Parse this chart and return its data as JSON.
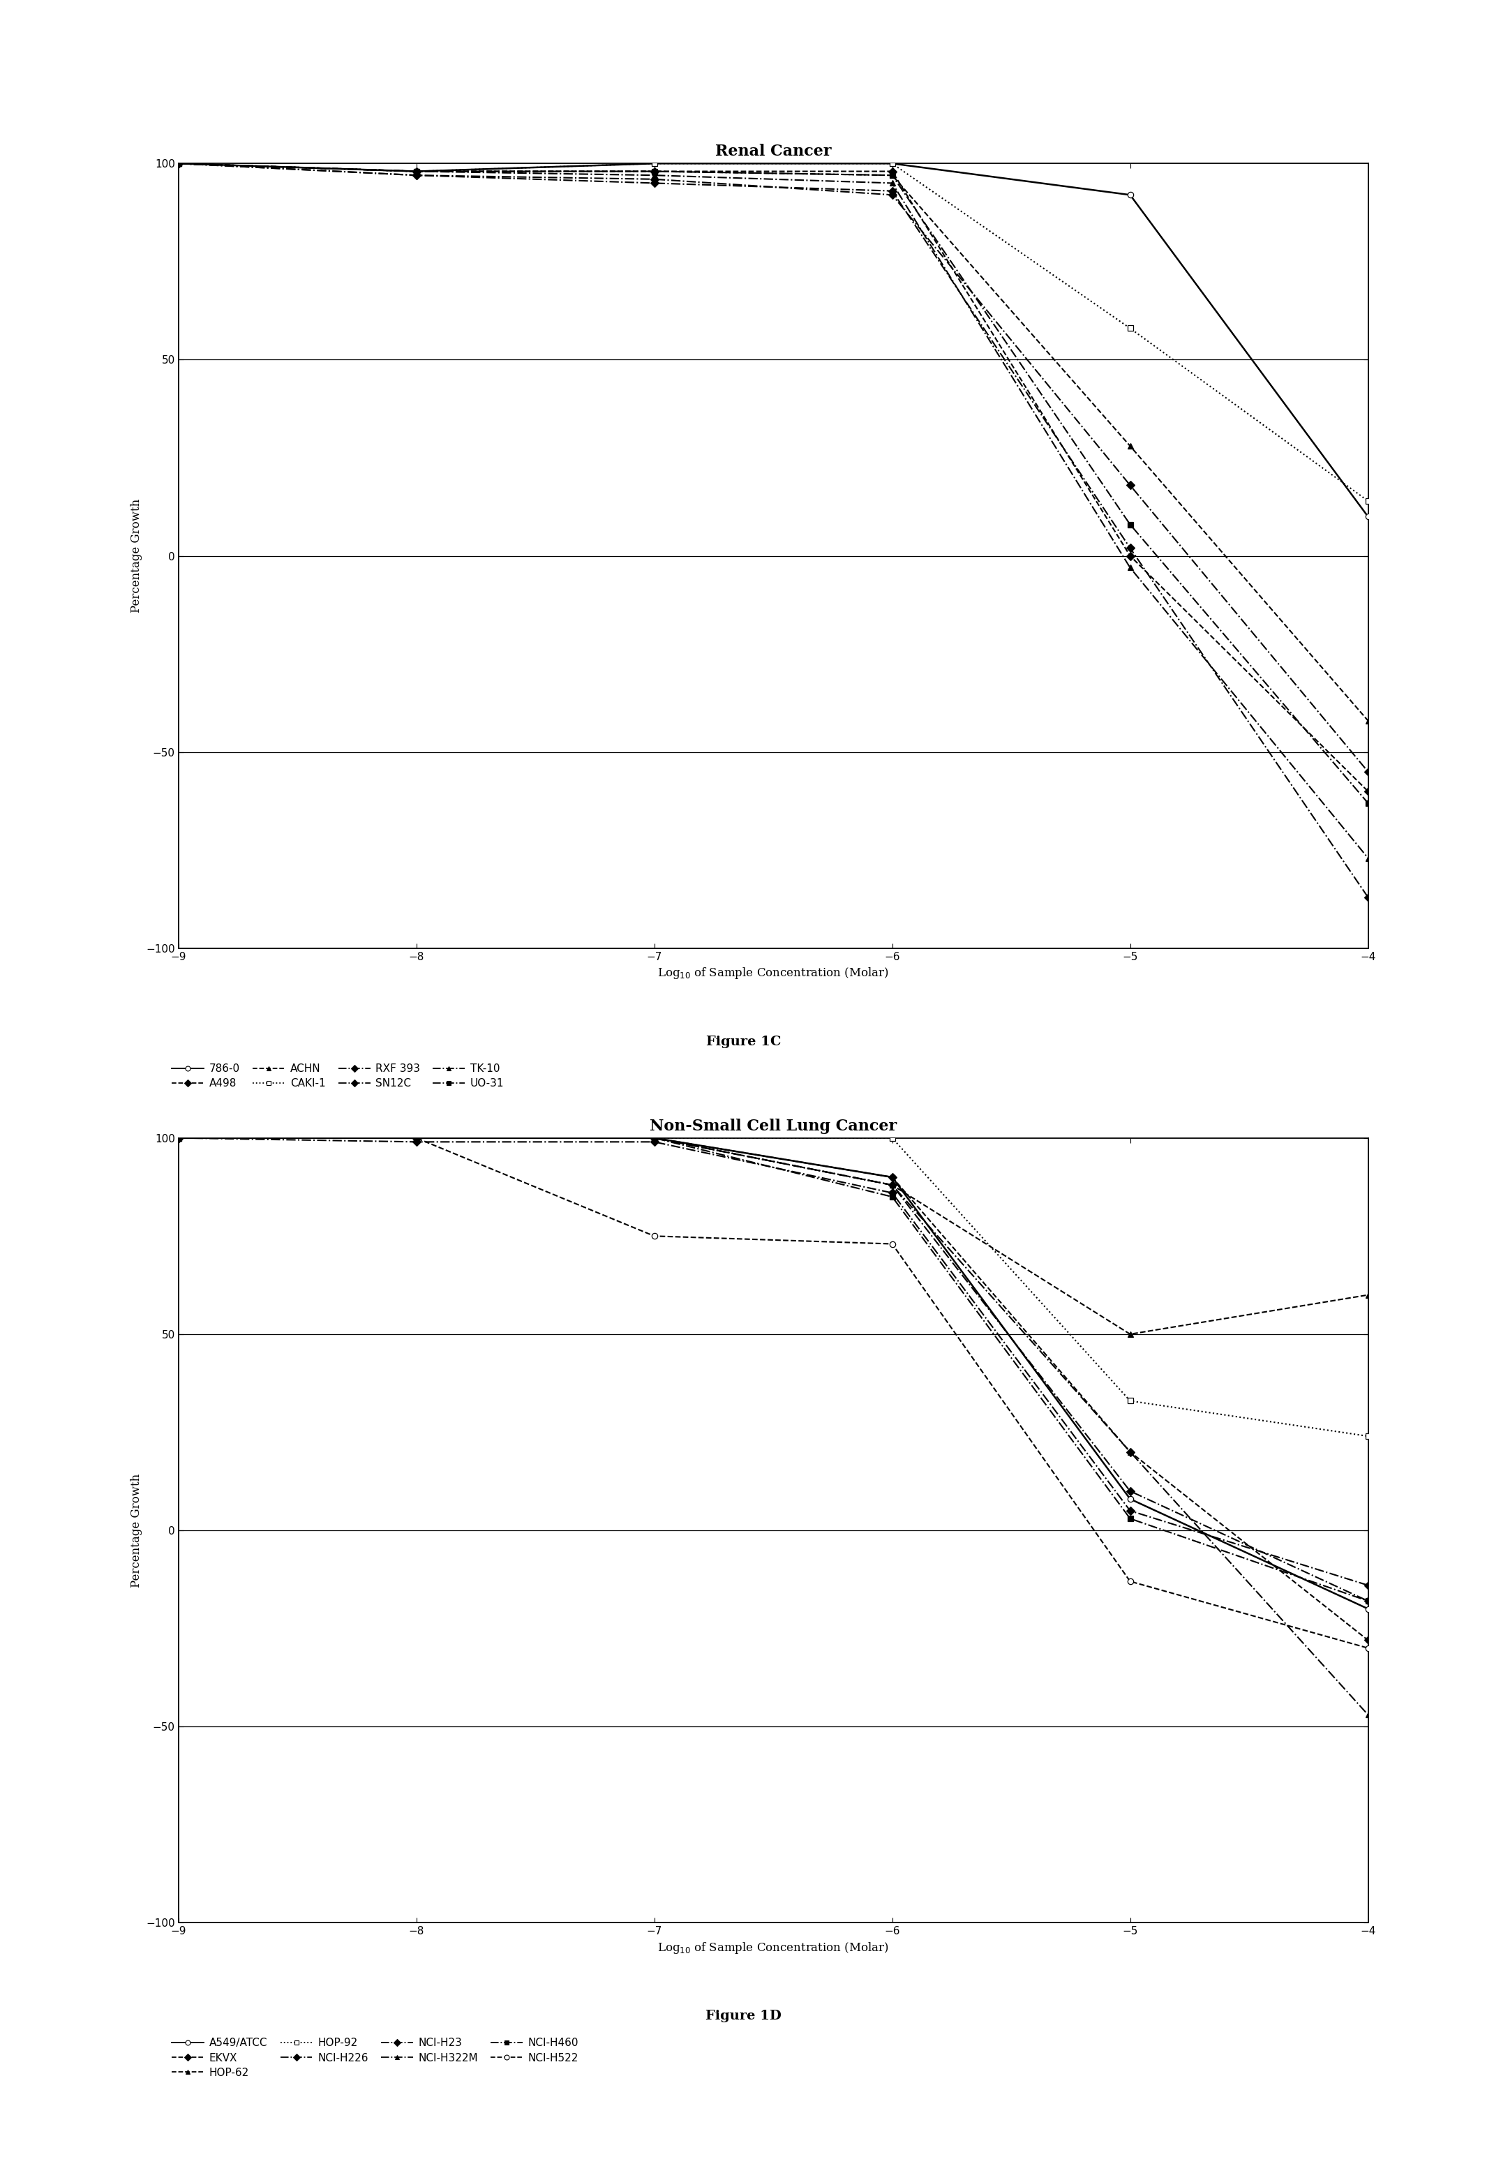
{
  "fig1c": {
    "title": "Renal Cancer",
    "xlabel": "Log$_{10}$ of Sample Concentration (Molar)",
    "ylabel": "Percentage Growth",
    "xlim": [
      -9,
      -4
    ],
    "ylim": [
      -100,
      100
    ],
    "yticks": [
      -100,
      -50,
      0,
      50,
      100
    ],
    "xtick_vals": [
      -9,
      -8,
      -7,
      -6,
      -5,
      -4
    ],
    "figure_label": "Figure 1C",
    "series": [
      {
        "name": "786-0",
        "x": [
          -9,
          -8,
          -7,
          -6,
          -5,
          -4
        ],
        "y": [
          100,
          98,
          100,
          100,
          92,
          10
        ],
        "linestyle": "-",
        "marker": "o",
        "mfc": "white",
        "lw": 1.8
      },
      {
        "name": "RXF 393",
        "x": [
          -9,
          -8,
          -7,
          -6,
          -5,
          -4
        ],
        "y": [
          100,
          97,
          95,
          93,
          2,
          -87
        ],
        "linestyle": "-.",
        "marker": "D",
        "mfc": "black",
        "lw": 1.5
      },
      {
        "name": "A498",
        "x": [
          -9,
          -8,
          -7,
          -6,
          -5,
          -4
        ],
        "y": [
          100,
          98,
          98,
          98,
          0,
          -60
        ],
        "linestyle": "--",
        "marker": "D",
        "mfc": "black",
        "lw": 1.5
      },
      {
        "name": "SN12C",
        "x": [
          -9,
          -8,
          -7,
          -6,
          -5,
          -4
        ],
        "y": [
          100,
          97,
          96,
          92,
          18,
          -55
        ],
        "linestyle": "-.",
        "marker": "D",
        "mfc": "black",
        "lw": 1.5
      },
      {
        "name": "ACHN",
        "x": [
          -9,
          -8,
          -7,
          -6,
          -5,
          -4
        ],
        "y": [
          100,
          98,
          98,
          97,
          28,
          -42
        ],
        "linestyle": "--",
        "marker": "^",
        "mfc": "black",
        "lw": 1.5
      },
      {
        "name": "TK-10",
        "x": [
          -9,
          -8,
          -7,
          -6,
          -5,
          -4
        ],
        "y": [
          100,
          98,
          97,
          95,
          -3,
          -77
        ],
        "linestyle": "-.",
        "marker": "^",
        "mfc": "black",
        "lw": 1.5
      },
      {
        "name": "CAKI-1",
        "x": [
          -9,
          -8,
          -7,
          -6,
          -5,
          -4
        ],
        "y": [
          100,
          98,
          100,
          100,
          58,
          14
        ],
        "linestyle": ":",
        "marker": "s",
        "mfc": "white",
        "lw": 1.5
      },
      {
        "name": "UO-31",
        "x": [
          -9,
          -8,
          -7,
          -6,
          -5,
          -4
        ],
        "y": [
          100,
          98,
          98,
          97,
          8,
          -63
        ],
        "linestyle": "-.",
        "marker": "s",
        "mfc": "black",
        "lw": 1.5
      }
    ],
    "legend_row1": [
      {
        "name": "786-0",
        "linestyle": "-",
        "marker": "o",
        "mfc": "white"
      },
      {
        "name": "A498",
        "linestyle": "--",
        "marker": "D",
        "mfc": "black"
      },
      {
        "name": "ACHN",
        "linestyle": "--",
        "marker": "^",
        "mfc": "black"
      },
      {
        "name": "CAKI-1",
        "linestyle": ":",
        "marker": "s",
        "mfc": "white"
      }
    ],
    "legend_row2": [
      {
        "name": "RXF 393",
        "linestyle": "-.",
        "marker": "D",
        "mfc": "black"
      },
      {
        "name": "SN12C",
        "linestyle": "-.",
        "marker": "D",
        "mfc": "black"
      },
      {
        "name": "TK-10",
        "linestyle": "-.",
        "marker": "^",
        "mfc": "black"
      },
      {
        "name": "UO-31",
        "linestyle": "-.",
        "marker": "s",
        "mfc": "black"
      }
    ]
  },
  "fig1d": {
    "title": "Non-Small Cell Lung Cancer",
    "xlabel": "Log$_{10}$ of Sample Concentration (Molar)",
    "ylabel": "Percentage Growth",
    "xlim": [
      -9,
      -4
    ],
    "ylim": [
      -100,
      100
    ],
    "yticks": [
      -100,
      -50,
      0,
      50,
      100
    ],
    "xtick_vals": [
      -9,
      -8,
      -7,
      -6,
      -5,
      -4
    ],
    "figure_label": "Figure 1D",
    "series": [
      {
        "name": "A549/ATCC",
        "x": [
          -9,
          -8,
          -7,
          -6,
          -5,
          -4
        ],
        "y": [
          100,
          100,
          100,
          90,
          8,
          -20
        ],
        "linestyle": "-",
        "marker": "o",
        "mfc": "white",
        "lw": 1.8
      },
      {
        "name": "NCI-H226",
        "x": [
          -9,
          -8,
          -7,
          -6,
          -5,
          -4
        ],
        "y": [
          100,
          99,
          99,
          86,
          5,
          -14
        ],
        "linestyle": "-.",
        "marker": "D",
        "mfc": "black",
        "lw": 1.5
      },
      {
        "name": "NCI-H522",
        "x": [
          -9,
          -8,
          -7,
          -6,
          -5,
          -4
        ],
        "y": [
          100,
          100,
          75,
          73,
          -13,
          -30
        ],
        "linestyle": "--",
        "marker": "o",
        "mfc": "white",
        "lw": 1.5
      },
      {
        "name": "EKVX",
        "x": [
          -9,
          -8,
          -7,
          -6,
          -5,
          -4
        ],
        "y": [
          100,
          100,
          100,
          90,
          20,
          -28
        ],
        "linestyle": "--",
        "marker": "D",
        "mfc": "black",
        "lw": 1.5
      },
      {
        "name": "NCI-H23",
        "x": [
          -9,
          -8,
          -7,
          -6,
          -5,
          -4
        ],
        "y": [
          100,
          100,
          100,
          88,
          10,
          -18
        ],
        "linestyle": "-.",
        "marker": "D",
        "mfc": "black",
        "lw": 1.5
      },
      {
        "name": "HOP-62",
        "x": [
          -9,
          -8,
          -7,
          -6,
          -5,
          -4
        ],
        "y": [
          100,
          100,
          100,
          88,
          50,
          60
        ],
        "linestyle": "--",
        "marker": "^",
        "mfc": "black",
        "lw": 1.5
      },
      {
        "name": "NCI-H322M",
        "x": [
          -9,
          -8,
          -7,
          -6,
          -5,
          -4
        ],
        "y": [
          100,
          100,
          100,
          88,
          20,
          -47
        ],
        "linestyle": "-.",
        "marker": "^",
        "mfc": "black",
        "lw": 1.5
      },
      {
        "name": "HOP-92",
        "x": [
          -9,
          -8,
          -7,
          -6,
          -5,
          -4
        ],
        "y": [
          100,
          100,
          100,
          100,
          33,
          24
        ],
        "linestyle": ":",
        "marker": "s",
        "mfc": "white",
        "lw": 1.5
      },
      {
        "name": "NCI-H460",
        "x": [
          -9,
          -8,
          -7,
          -6,
          -5,
          -4
        ],
        "y": [
          100,
          100,
          100,
          85,
          3,
          -18
        ],
        "linestyle": "-.",
        "marker": "s",
        "mfc": "black",
        "lw": 1.5
      }
    ],
    "legend_row1": [
      {
        "name": "A549/ATCC",
        "linestyle": "-",
        "marker": "o",
        "mfc": "white"
      },
      {
        "name": "EKVX",
        "linestyle": "--",
        "marker": "D",
        "mfc": "black"
      },
      {
        "name": "HOP-62",
        "linestyle": "--",
        "marker": "^",
        "mfc": "black"
      },
      {
        "name": "HOP-92",
        "linestyle": ":",
        "marker": "s",
        "mfc": "white"
      }
    ],
    "legend_row2": [
      {
        "name": "NCI-H226",
        "linestyle": "-.",
        "marker": "D",
        "mfc": "black"
      },
      {
        "name": "NCI-H23",
        "linestyle": "-.",
        "marker": "D",
        "mfc": "black"
      },
      {
        "name": "NCI-H322M",
        "linestyle": "-.",
        "marker": "^",
        "mfc": "black"
      },
      {
        "name": "NCI-H460",
        "linestyle": "-.",
        "marker": "s",
        "mfc": "black"
      }
    ],
    "legend_row3": [
      {
        "name": "NCI-H522",
        "linestyle": "--",
        "marker": "o",
        "mfc": "white"
      }
    ]
  },
  "background_color": "#ffffff",
  "line_color": "black",
  "font_size": 13,
  "title_font_size": 16,
  "axis_label_fontsize": 12,
  "legend_fontsize": 11,
  "marker_size": 6,
  "fig_label_fontsize": 14
}
